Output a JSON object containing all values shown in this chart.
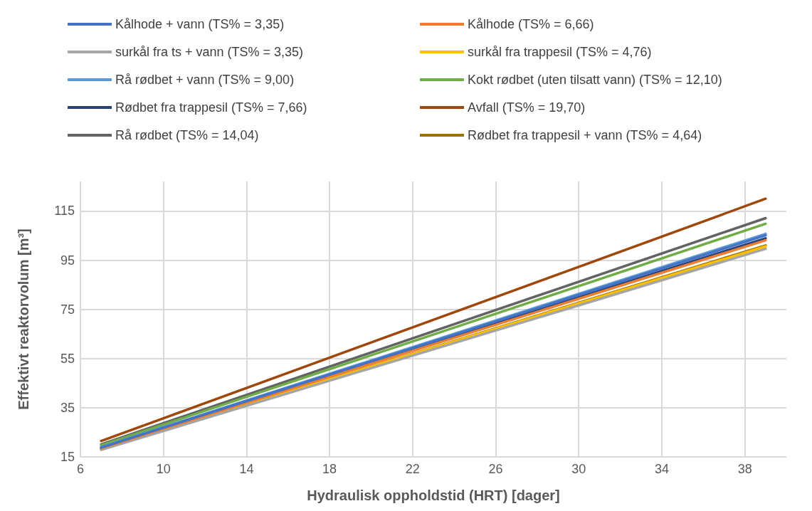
{
  "chart_data": {
    "type": "line",
    "xlabel": "Hydraulisk oppholdstid (HRT) [dager]",
    "ylabel": "Effektivt reaktorvolum [m³]",
    "x": [
      7,
      39
    ],
    "series": [
      {
        "name": "Kålhode + vann (TS% = 3,35)",
        "color": "#4472c4",
        "values": [
          18.8,
          105.1
        ]
      },
      {
        "name": "Kålhode (TS% = 6,66)",
        "color": "#ed7d31",
        "values": [
          18.5,
          103.1
        ]
      },
      {
        "name": "surkål fra ts + vann (TS% = 3,35)",
        "color": "#a5a5a5",
        "values": [
          17.9,
          99.6
        ]
      },
      {
        "name": "surkål fra trappesil (TS% = 4,76)",
        "color": "#ffc000",
        "values": [
          18.2,
          100.6
        ]
      },
      {
        "name": "Rå rødbet + vann (TS% = 9,00)",
        "color": "#5b9bd5",
        "values": [
          19.0,
          105.7
        ]
      },
      {
        "name": "Kokt rødbet (uten tilsatt vann) (TS% = 12,10)",
        "color": "#70ad47",
        "values": [
          19.7,
          109.8
        ]
      },
      {
        "name": "Rødbet fra trappesil (TS% = 7,66)",
        "color": "#264478",
        "values": [
          18.7,
          103.9
        ]
      },
      {
        "name": "Avfall (TS% = 19,70)",
        "color": "#9e480e",
        "values": [
          21.5,
          120
        ]
      },
      {
        "name": "Rå rødbet (TS% = 14,04)",
        "color": "#636363",
        "values": [
          20.1,
          112.1
        ]
      },
      {
        "name": "Rødbet fra trappesil + vann (TS% = 4,64)",
        "color": "#997300",
        "values": [
          18.1,
          101
        ]
      }
    ],
    "xlim": [
      6,
      40
    ],
    "xticks": [
      6,
      10,
      14,
      18,
      22,
      26,
      30,
      34,
      38
    ],
    "ylim": [
      15,
      127
    ],
    "yticks": [
      15,
      35,
      55,
      75,
      95,
      115
    ],
    "grid": true,
    "legend": "top",
    "marker": "none",
    "line_style": "solid"
  }
}
